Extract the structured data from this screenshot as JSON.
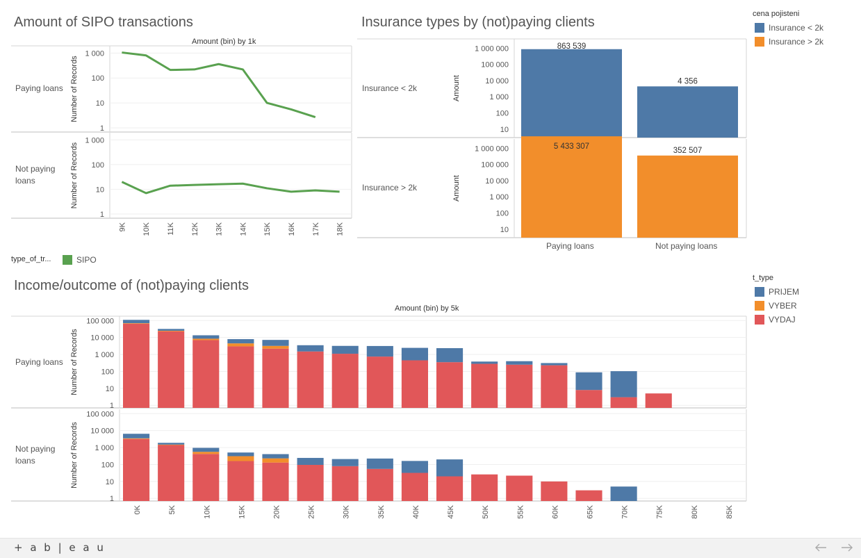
{
  "app": {
    "logo_text": "+ a b | e a u",
    "nav": {
      "back_icon": "arrow-left-icon",
      "forward_icon": "arrow-right-icon"
    }
  },
  "sipo_sheet": {
    "title": "Amount of SIPO transactions",
    "x_title": "Amount (bin) by 1k",
    "y_title": "Number of Records",
    "rows": [
      "Paying loans",
      "Not paying loans"
    ],
    "legend": {
      "title": "type_of_tr...",
      "items": [
        {
          "label": "SIPO",
          "color": "#59a14f"
        }
      ]
    }
  },
  "ins_sheet": {
    "title": "Insurance types by (not)paying clients",
    "y_title": "Amount",
    "rows": [
      "Insurance < 2k",
      "Insurance > 2k"
    ],
    "columns": [
      "Paying loans",
      "Not paying loans"
    ],
    "legend": {
      "title": "cena pojisteni",
      "items": [
        {
          "label": "Insurance < 2k",
          "color": "#4e79a7"
        },
        {
          "label": "Insurance > 2k",
          "color": "#f28e2b"
        }
      ]
    }
  },
  "inc_sheet": {
    "title": "Income/outcome of (not)paying clients",
    "x_title": "Amount (bin) by 5k",
    "y_title": "Number of Records",
    "rows": [
      "Paying loans",
      "Not paying loans"
    ],
    "legend": {
      "title": "t_type",
      "items": [
        {
          "label": "PRIJEM",
          "color": "#4e79a7"
        },
        {
          "label": "VYBER",
          "color": "#f28e2b"
        },
        {
          "label": "VYDAJ",
          "color": "#e15759"
        }
      ]
    }
  },
  "chart_data": [
    {
      "type": "line",
      "title": "Amount of SIPO transactions",
      "xlabel": "Amount (bin) by 1k",
      "ylabel": "Number of Records",
      "scale": "log",
      "categories": [
        "9K",
        "10K",
        "11K",
        "12K",
        "13K",
        "14K",
        "15K",
        "16K",
        "17K",
        "18K"
      ],
      "y_ticks": [
        1,
        10,
        100,
        1000
      ],
      "y_tick_labels": [
        "1",
        "10",
        "100",
        "1 000"
      ],
      "panels": [
        {
          "row": "Paying loans",
          "series": [
            {
              "name": "SIPO",
              "values": [
                1050,
                800,
                210,
                220,
                360,
                220,
                10,
                5.5,
                2.7,
                null
              ]
            }
          ]
        },
        {
          "row": "Not paying loans",
          "series": [
            {
              "name": "SIPO",
              "values": [
                20,
                7,
                14,
                15,
                16,
                17,
                11,
                8,
                9,
                8
              ]
            }
          ]
        }
      ]
    },
    {
      "type": "bar",
      "title": "Insurance types by (not)paying clients",
      "ylabel": "Amount",
      "scale": "log",
      "categories": [
        "Paying loans",
        "Not paying loans"
      ],
      "y_ticks": [
        10,
        100,
        1000,
        10000,
        100000,
        1000000
      ],
      "y_tick_labels": [
        "10",
        "100",
        "1 000",
        "10 000",
        "100 000",
        "1 000 000"
      ],
      "panels": [
        {
          "row": "Insurance < 2k",
          "values": [
            863539,
            4356
          ],
          "labels": [
            "863 539",
            "4 356"
          ]
        },
        {
          "row": "Insurance > 2k",
          "values": [
            5433307,
            352507
          ],
          "labels": [
            "5 433 307",
            "352 507"
          ]
        }
      ]
    },
    {
      "type": "bar",
      "stacked": true,
      "title": "Income/outcome of (not)paying clients",
      "xlabel": "Amount (bin) by 5k",
      "ylabel": "Number of Records",
      "scale": "log",
      "categories": [
        "0K",
        "5K",
        "10K",
        "15K",
        "20K",
        "25K",
        "30K",
        "35K",
        "40K",
        "45K",
        "50K",
        "55K",
        "60K",
        "65K",
        "70K",
        "75K",
        "80K",
        "85K"
      ],
      "y_ticks": [
        1,
        10,
        100,
        1000,
        10000,
        100000
      ],
      "y_tick_labels": [
        "1",
        "10",
        "100",
        "1 000",
        "10 000",
        "100 000"
      ],
      "panels": [
        {
          "row": "Paying loans",
          "series": [
            {
              "name": "VYDAJ",
              "values": [
                65000,
                23000,
                7000,
                3000,
                2200,
                1500,
                1100,
                750,
                450,
                350,
                280,
                250,
                230,
                8,
                3,
                5,
                0,
                0
              ]
            },
            {
              "name": "VYBER",
              "values": [
                5000,
                2000,
                1500,
                1500,
                1000,
                0,
                0,
                0,
                0,
                0,
                0,
                0,
                0,
                0,
                0,
                0,
                0,
                0
              ]
            },
            {
              "name": "PRIJEM",
              "values": [
                40000,
                7000,
                5000,
                3500,
                4000,
                2000,
                2100,
                2400,
                2000,
                2000,
                100,
                150,
                80,
                80,
                100,
                0,
                0,
                0
              ]
            }
          ]
        },
        {
          "row": "Not paying loans",
          "series": [
            {
              "name": "VYDAJ",
              "values": [
                3200,
                1400,
                420,
                160,
                130,
                95,
                80,
                55,
                32,
                20,
                26,
                22,
                10,
                3,
                0,
                0,
                0,
                0
              ]
            },
            {
              "name": "VYBER",
              "values": [
                300,
                100,
                140,
                150,
                100,
                0,
                0,
                0,
                0,
                0,
                0,
                0,
                0,
                0,
                0,
                0,
                0,
                0
              ]
            },
            {
              "name": "PRIJEM",
              "values": [
                3000,
                400,
                400,
                200,
                180,
                150,
                130,
                170,
                130,
                180,
                0,
                0,
                0,
                0,
                5,
                0,
                0,
                0
              ]
            }
          ]
        }
      ]
    }
  ]
}
